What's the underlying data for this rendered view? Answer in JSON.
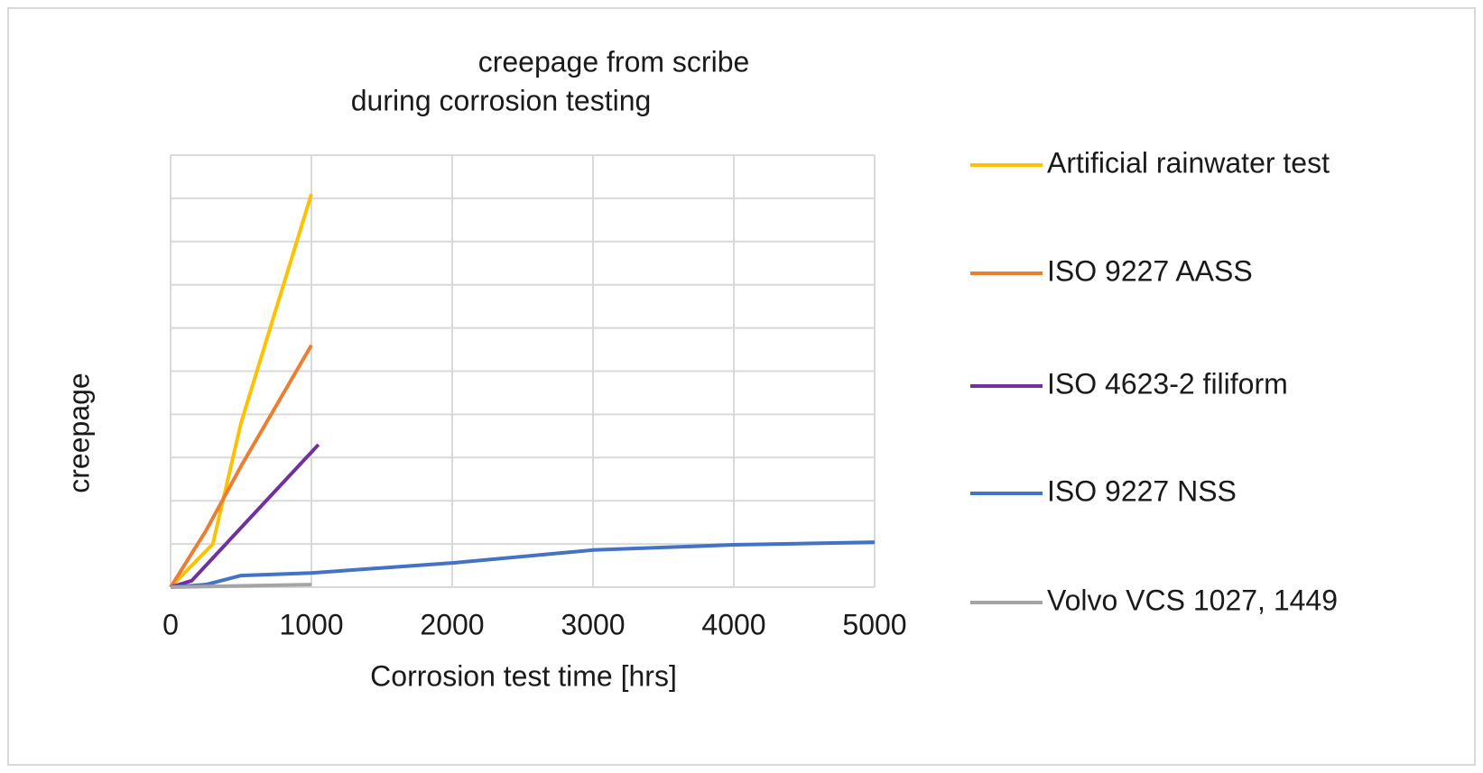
{
  "chart_data": {
    "type": "line",
    "title": [
      "creepage from scribe",
      "during corrosion testing"
    ],
    "xlabel": "Corrosion test time [hrs]",
    "ylabel": "creepage",
    "xlim": [
      0,
      5000
    ],
    "xticks": [
      0,
      1000,
      2000,
      3000,
      4000,
      5000
    ],
    "ylim": [
      0,
      10
    ],
    "yticks": [
      0,
      1,
      2,
      3,
      4,
      5,
      6,
      7,
      8,
      9,
      10
    ],
    "grid": true,
    "legend": "right",
    "series": [
      {
        "name": "Artificial rainwater test",
        "color": "#ffc000",
        "x": [
          0,
          300,
          500,
          1000
        ],
        "values": [
          0,
          1,
          3.8,
          9.1
        ]
      },
      {
        "name": "ISO 9227 AASS",
        "color": "#ed7d31",
        "x": [
          0,
          250,
          500,
          1000
        ],
        "values": [
          0,
          1.3,
          2.8,
          5.6
        ]
      },
      {
        "name": "ISO 4623-2 filiform",
        "color": "#7030a0",
        "x": [
          0,
          150,
          1050
        ],
        "values": [
          0,
          0.15,
          3.3
        ]
      },
      {
        "name": "ISO 9227 NSS",
        "color": "#4472c4",
        "x": [
          0,
          250,
          500,
          1000,
          2000,
          3000,
          4000,
          5000
        ],
        "values": [
          0,
          0.06,
          0.27,
          0.33,
          0.56,
          0.86,
          0.98,
          1.04
        ]
      },
      {
        "name": "Volvo VCS 1027, 1449",
        "color": "#a5a5a5",
        "x": [
          0,
          1000
        ],
        "values": [
          0,
          0.06
        ]
      }
    ]
  }
}
